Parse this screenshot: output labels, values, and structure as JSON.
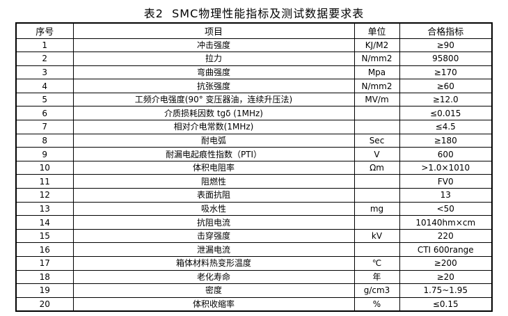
{
  "title": "表2  SMC物理性能指标及测试数据要求表",
  "table": {
    "headers": [
      "序号",
      "项目",
      "单位",
      "合格指标"
    ],
    "rows": [
      [
        "1",
        "冲击强度",
        "KJ/M2",
        "≥90"
      ],
      [
        "2",
        "拉力",
        "N/mm2",
        "95800"
      ],
      [
        "3",
        "弯曲强度",
        "Mpa",
        "≥170"
      ],
      [
        "4",
        "抗张强度",
        "N/mm2",
        "≥60"
      ],
      [
        "5",
        "工频介电强度(90° 变压器油，连续升压法)",
        "MV/m",
        "≥12.0"
      ],
      [
        "6",
        "介质损耗因数 tgδ (1MHz)",
        "",
        "≤0.015"
      ],
      [
        "7",
        "相对介电常数(1MHz)",
        "",
        "≤4.5"
      ],
      [
        "8",
        "耐电弧",
        "Sec",
        "≥180"
      ],
      [
        "9",
        "耐漏电起痕性指数（PTI）",
        "V",
        "600"
      ],
      [
        "10",
        "体积电阻率",
        "Ωm",
        ">1.0×1010"
      ],
      [
        "11",
        "阻燃性",
        "",
        "FV0"
      ],
      [
        "12",
        "表面抗阻",
        "",
        "13"
      ],
      [
        "13",
        "吸水性",
        "mg",
        "<50"
      ],
      [
        "14",
        "抗阻电流",
        "",
        "10140hm×cm"
      ],
      [
        "15",
        "击穿强度",
        "kV",
        "220"
      ],
      [
        "16",
        "泄漏电流",
        "",
        "CTI 600range"
      ],
      [
        "17",
        "箱体材料热变形温度",
        "℃",
        "≥200"
      ],
      [
        "18",
        "老化寿命",
        "年",
        "≥20"
      ],
      [
        "19",
        "密度",
        "g/cm3",
        "1.75~1.95"
      ],
      [
        "20",
        "体积收缩率",
        "%",
        "≤0.15"
      ]
    ]
  }
}
